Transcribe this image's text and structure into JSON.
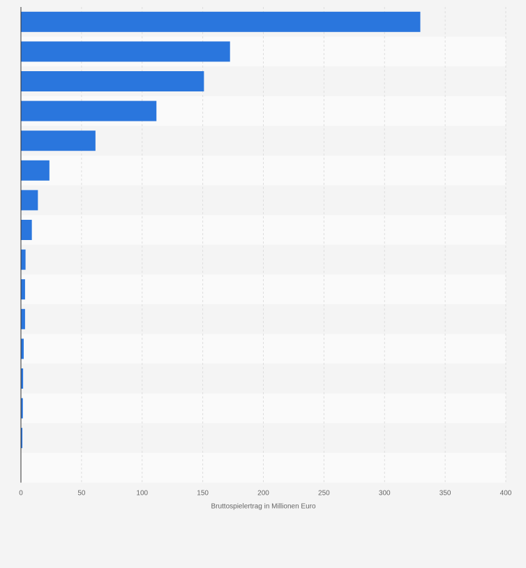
{
  "chart_data": {
    "type": "bar",
    "orientation": "horizontal",
    "title": "",
    "xlabel": "Bruttospielertrag in Millionen Euro",
    "ylabel": "",
    "xlim": [
      0,
      400
    ],
    "xticks": [
      0,
      50,
      100,
      150,
      200,
      250,
      300,
      350,
      400
    ],
    "grid": true,
    "categories": [
      "",
      "",
      "",
      "",
      "",
      "",
      "",
      "",
      "",
      "",
      "",
      "",
      "",
      "",
      ""
    ],
    "values": [
      329.5,
      172.5,
      151.0,
      111.8,
      61.5,
      23.5,
      14.0,
      9.0,
      3.8,
      3.4,
      3.4,
      2.3,
      1.8,
      1.6,
      1.2
    ],
    "colors": {
      "bar": "#2a76dd",
      "band_light": "#fafafa",
      "band_dark": "#f4f4f4",
      "grid": "#dddddd",
      "axis": "#333333",
      "text": "#666666"
    }
  }
}
